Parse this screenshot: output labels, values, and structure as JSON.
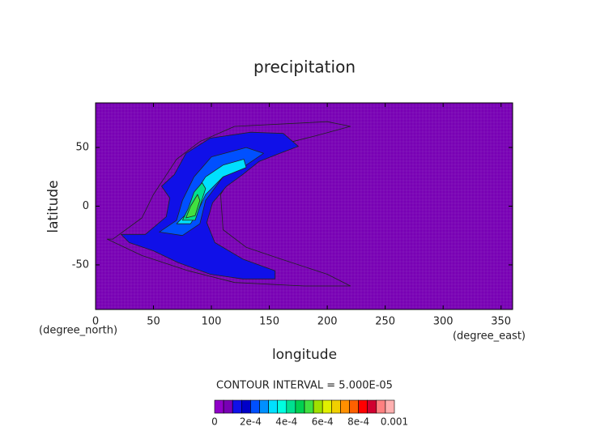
{
  "chart_data": {
    "type": "contour",
    "title": "precipitation",
    "x_label": "longitude",
    "y_label": "latitude",
    "x_unit": "(degree_east)",
    "y_unit": "(degree_north)",
    "xlim": [
      0,
      360
    ],
    "xticks": [
      0,
      50,
      100,
      150,
      200,
      250,
      300,
      350
    ],
    "ylim": [
      -88,
      88
    ],
    "yticks": [
      -50,
      0,
      50
    ],
    "contour_interval_label": "CONTOUR INTERVAL = 5.000E-05",
    "levels": [
      0,
      5e-05,
      0.0001,
      0.00015,
      0.0002,
      0.00025,
      0.0003,
      0.00035,
      0.0004,
      0.00045,
      0.0005,
      0.00055,
      0.0006,
      0.00065,
      0.0007,
      0.00075,
      0.0008,
      0.00085,
      0.0009,
      0.00095,
      0.001
    ],
    "colors": [
      "#9000c8",
      "#7800b4",
      "#1010e8",
      "#0000c8",
      "#0050ff",
      "#0090ff",
      "#00e0ff",
      "#00ffe0",
      "#00e090",
      "#00d050",
      "#40e040",
      "#a0e000",
      "#e0f000",
      "#f0d000",
      "#ff9000",
      "#ff6000",
      "#ff0000",
      "#d00030",
      "#ff8080",
      "#ffb0b0"
    ],
    "colorbar_ticks": [
      0,
      {
        "value": 0.0002,
        "label": "2e-4"
      },
      {
        "value": 0.0004,
        "label": "4e-4"
      },
      {
        "value": 0.0006,
        "label": "6e-4"
      },
      {
        "value": 0.0008,
        "label": "8e-4"
      },
      0.001
    ],
    "contours": [
      {
        "level": 5e-05,
        "points": [
          [
            15,
            -28
          ],
          [
            40,
            -10
          ],
          [
            50,
            10
          ],
          [
            60,
            25
          ],
          [
            70,
            40
          ],
          [
            90,
            55
          ],
          [
            120,
            68
          ],
          [
            200,
            72
          ],
          [
            220,
            68
          ],
          [
            190,
            60
          ],
          [
            170,
            55
          ],
          [
            140,
            45
          ],
          [
            120,
            30
          ],
          [
            108,
            10
          ],
          [
            110,
            -20
          ],
          [
            130,
            -35
          ],
          [
            160,
            -45
          ],
          [
            200,
            -58
          ],
          [
            220,
            -68
          ],
          [
            180,
            -68
          ],
          [
            120,
            -65
          ],
          [
            80,
            -55
          ],
          [
            40,
            -42
          ],
          [
            10,
            -28
          ]
        ]
      },
      {
        "level": 0.0001,
        "points": [
          [
            43,
            -24
          ],
          [
            61,
            -9
          ],
          [
            64,
            7
          ],
          [
            57,
            17
          ],
          [
            68,
            27
          ],
          [
            78,
            45
          ],
          [
            99,
            58
          ],
          [
            134,
            63
          ],
          [
            162,
            62
          ],
          [
            175,
            51
          ],
          [
            159,
            45
          ],
          [
            141,
            38
          ],
          [
            127,
            27
          ],
          [
            113,
            17
          ],
          [
            101,
            3
          ],
          [
            96,
            -14
          ],
          [
            103,
            -31
          ],
          [
            127,
            -45
          ],
          [
            155,
            -55
          ],
          [
            155,
            -62
          ],
          [
            127,
            -62
          ],
          [
            99,
            -58
          ],
          [
            71,
            -48
          ],
          [
            50,
            -38
          ],
          [
            29,
            -31
          ],
          [
            22,
            -24
          ]
        ]
      },
      {
        "level": 0.0002,
        "points": [
          [
            55,
            -22
          ],
          [
            70,
            -12
          ],
          [
            75,
            5
          ],
          [
            85,
            25
          ],
          [
            100,
            42
          ],
          [
            130,
            50
          ],
          [
            145,
            45
          ],
          [
            130,
            35
          ],
          [
            110,
            25
          ],
          [
            95,
            5
          ],
          [
            90,
            -15
          ],
          [
            75,
            -25
          ]
        ]
      },
      {
        "level": 0.0003,
        "points": [
          [
            70,
            -15
          ],
          [
            80,
            -5
          ],
          [
            85,
            10
          ],
          [
            95,
            25
          ],
          [
            110,
            35
          ],
          [
            128,
            40
          ],
          [
            130,
            33
          ],
          [
            110,
            25
          ],
          [
            95,
            10
          ],
          [
            88,
            -5
          ],
          [
            82,
            -15
          ]
        ]
      },
      {
        "level": 0.0004,
        "points": [
          [
            75,
            -12
          ],
          [
            80,
            -2
          ],
          [
            85,
            12
          ],
          [
            92,
            20
          ],
          [
            95,
            15
          ],
          [
            90,
            0
          ],
          [
            86,
            -12
          ]
        ]
      },
      {
        "level": 0.0005,
        "points": [
          [
            78,
            -10
          ],
          [
            82,
            0
          ],
          [
            88,
            10
          ],
          [
            90,
            5
          ],
          [
            86,
            -8
          ]
        ]
      }
    ]
  }
}
